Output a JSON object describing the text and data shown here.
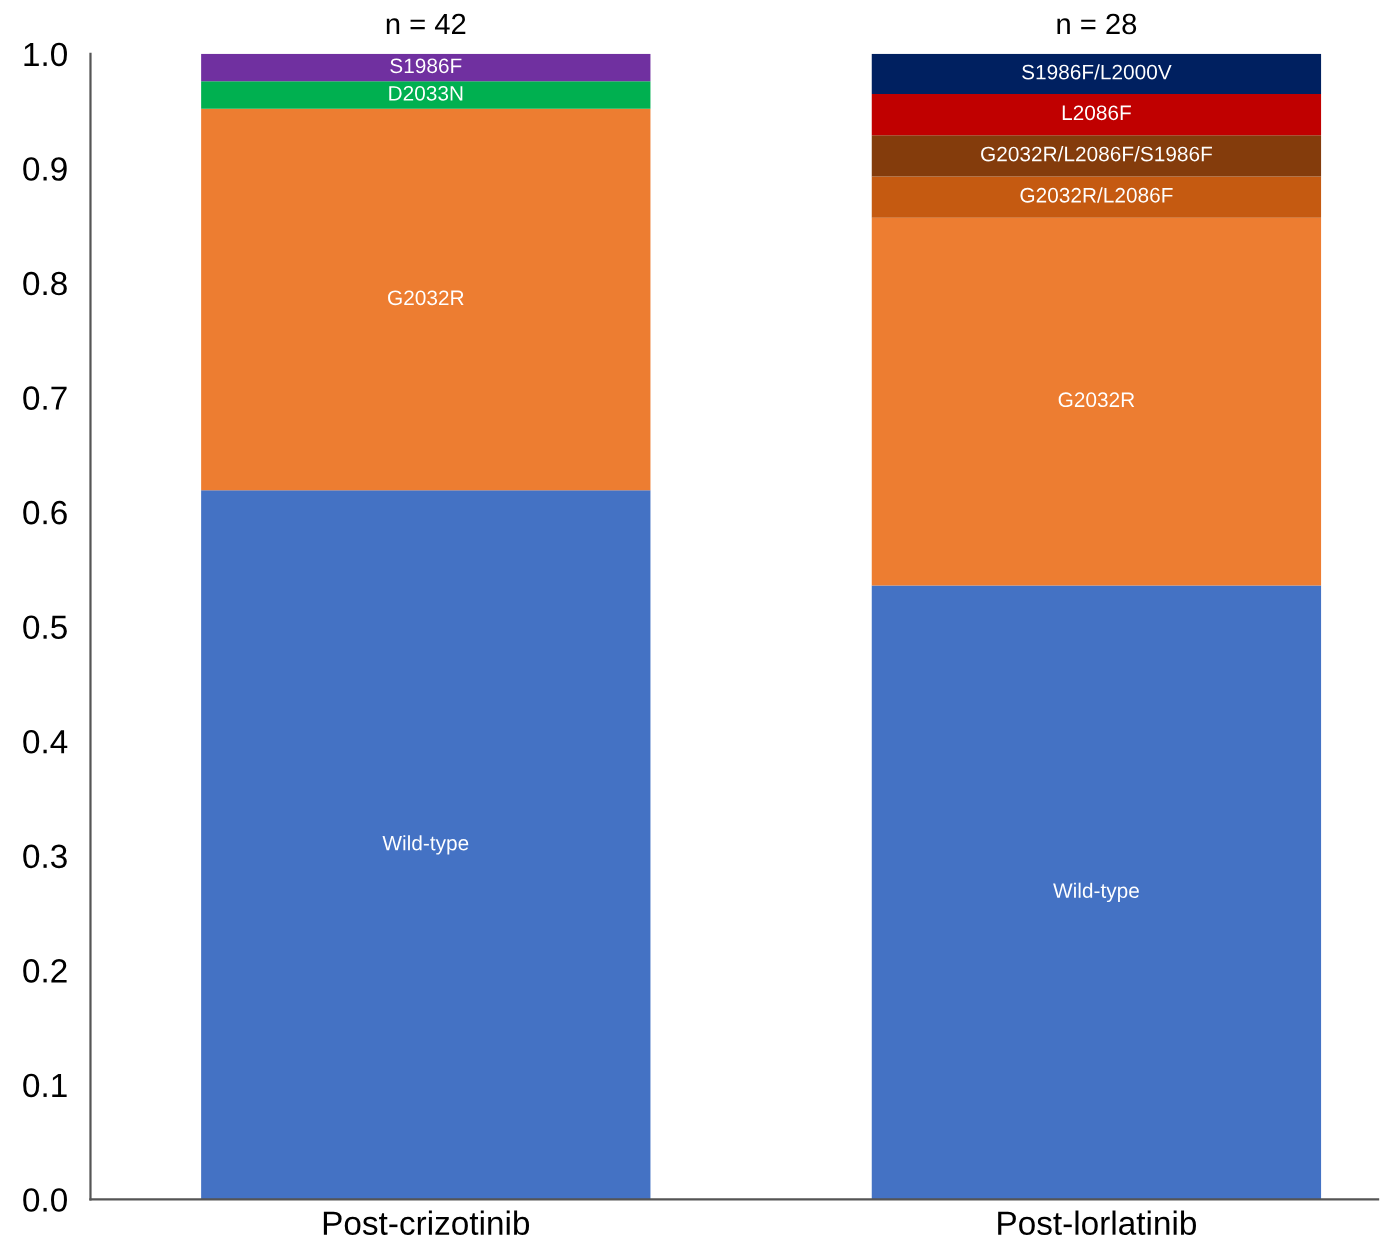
{
  "chart_data": {
    "type": "bar",
    "stacked": true,
    "categories": [
      "Post-crizotinib",
      "Post-lorlatinib"
    ],
    "series": [
      {
        "name": "Wild-type",
        "color": "#4472c4",
        "values": [
          0.619,
          0.536
        ]
      },
      {
        "name": "G2032R",
        "color": "#ed7d31",
        "values": [
          0.333,
          0.321
        ]
      },
      {
        "name": "D2033N",
        "color": "#00b050",
        "values": [
          0.024,
          null
        ]
      },
      {
        "name": "S1986F",
        "color": "#7030a0",
        "values": [
          0.024,
          null
        ]
      },
      {
        "name": "G2032R/L2086F",
        "color": "#c55a11",
        "values": [
          null,
          0.036
        ]
      },
      {
        "name": "G2032R/L2086F/S1986F",
        "color": "#843c0c",
        "values": [
          null,
          0.036
        ]
      },
      {
        "name": "L2086F",
        "color": "#c00000",
        "values": [
          null,
          0.036
        ]
      },
      {
        "name": "S1986F/L2000V",
        "color": "#002060",
        "values": [
          null,
          0.035
        ]
      }
    ],
    "annotations": [
      "n = 42",
      "n = 28"
    ],
    "ylim": [
      0,
      1
    ],
    "yticks": [
      {
        "value": 0,
        "label": "0.0"
      },
      {
        "value": 0.1,
        "label": "0.1"
      },
      {
        "value": 0.2,
        "label": "0.2"
      },
      {
        "value": 0.3,
        "label": "0.3"
      },
      {
        "value": 0.4,
        "label": "0.4"
      },
      {
        "value": 0.5,
        "label": "0.5"
      },
      {
        "value": 0.6,
        "label": "0.6"
      },
      {
        "value": 0.7,
        "label": "0.7"
      },
      {
        "value": 0.8,
        "label": "0.8"
      },
      {
        "value": 0.9,
        "label": "0.9"
      },
      {
        "value": 1,
        "label": "1.0"
      }
    ],
    "grid": false,
    "legend": false
  }
}
